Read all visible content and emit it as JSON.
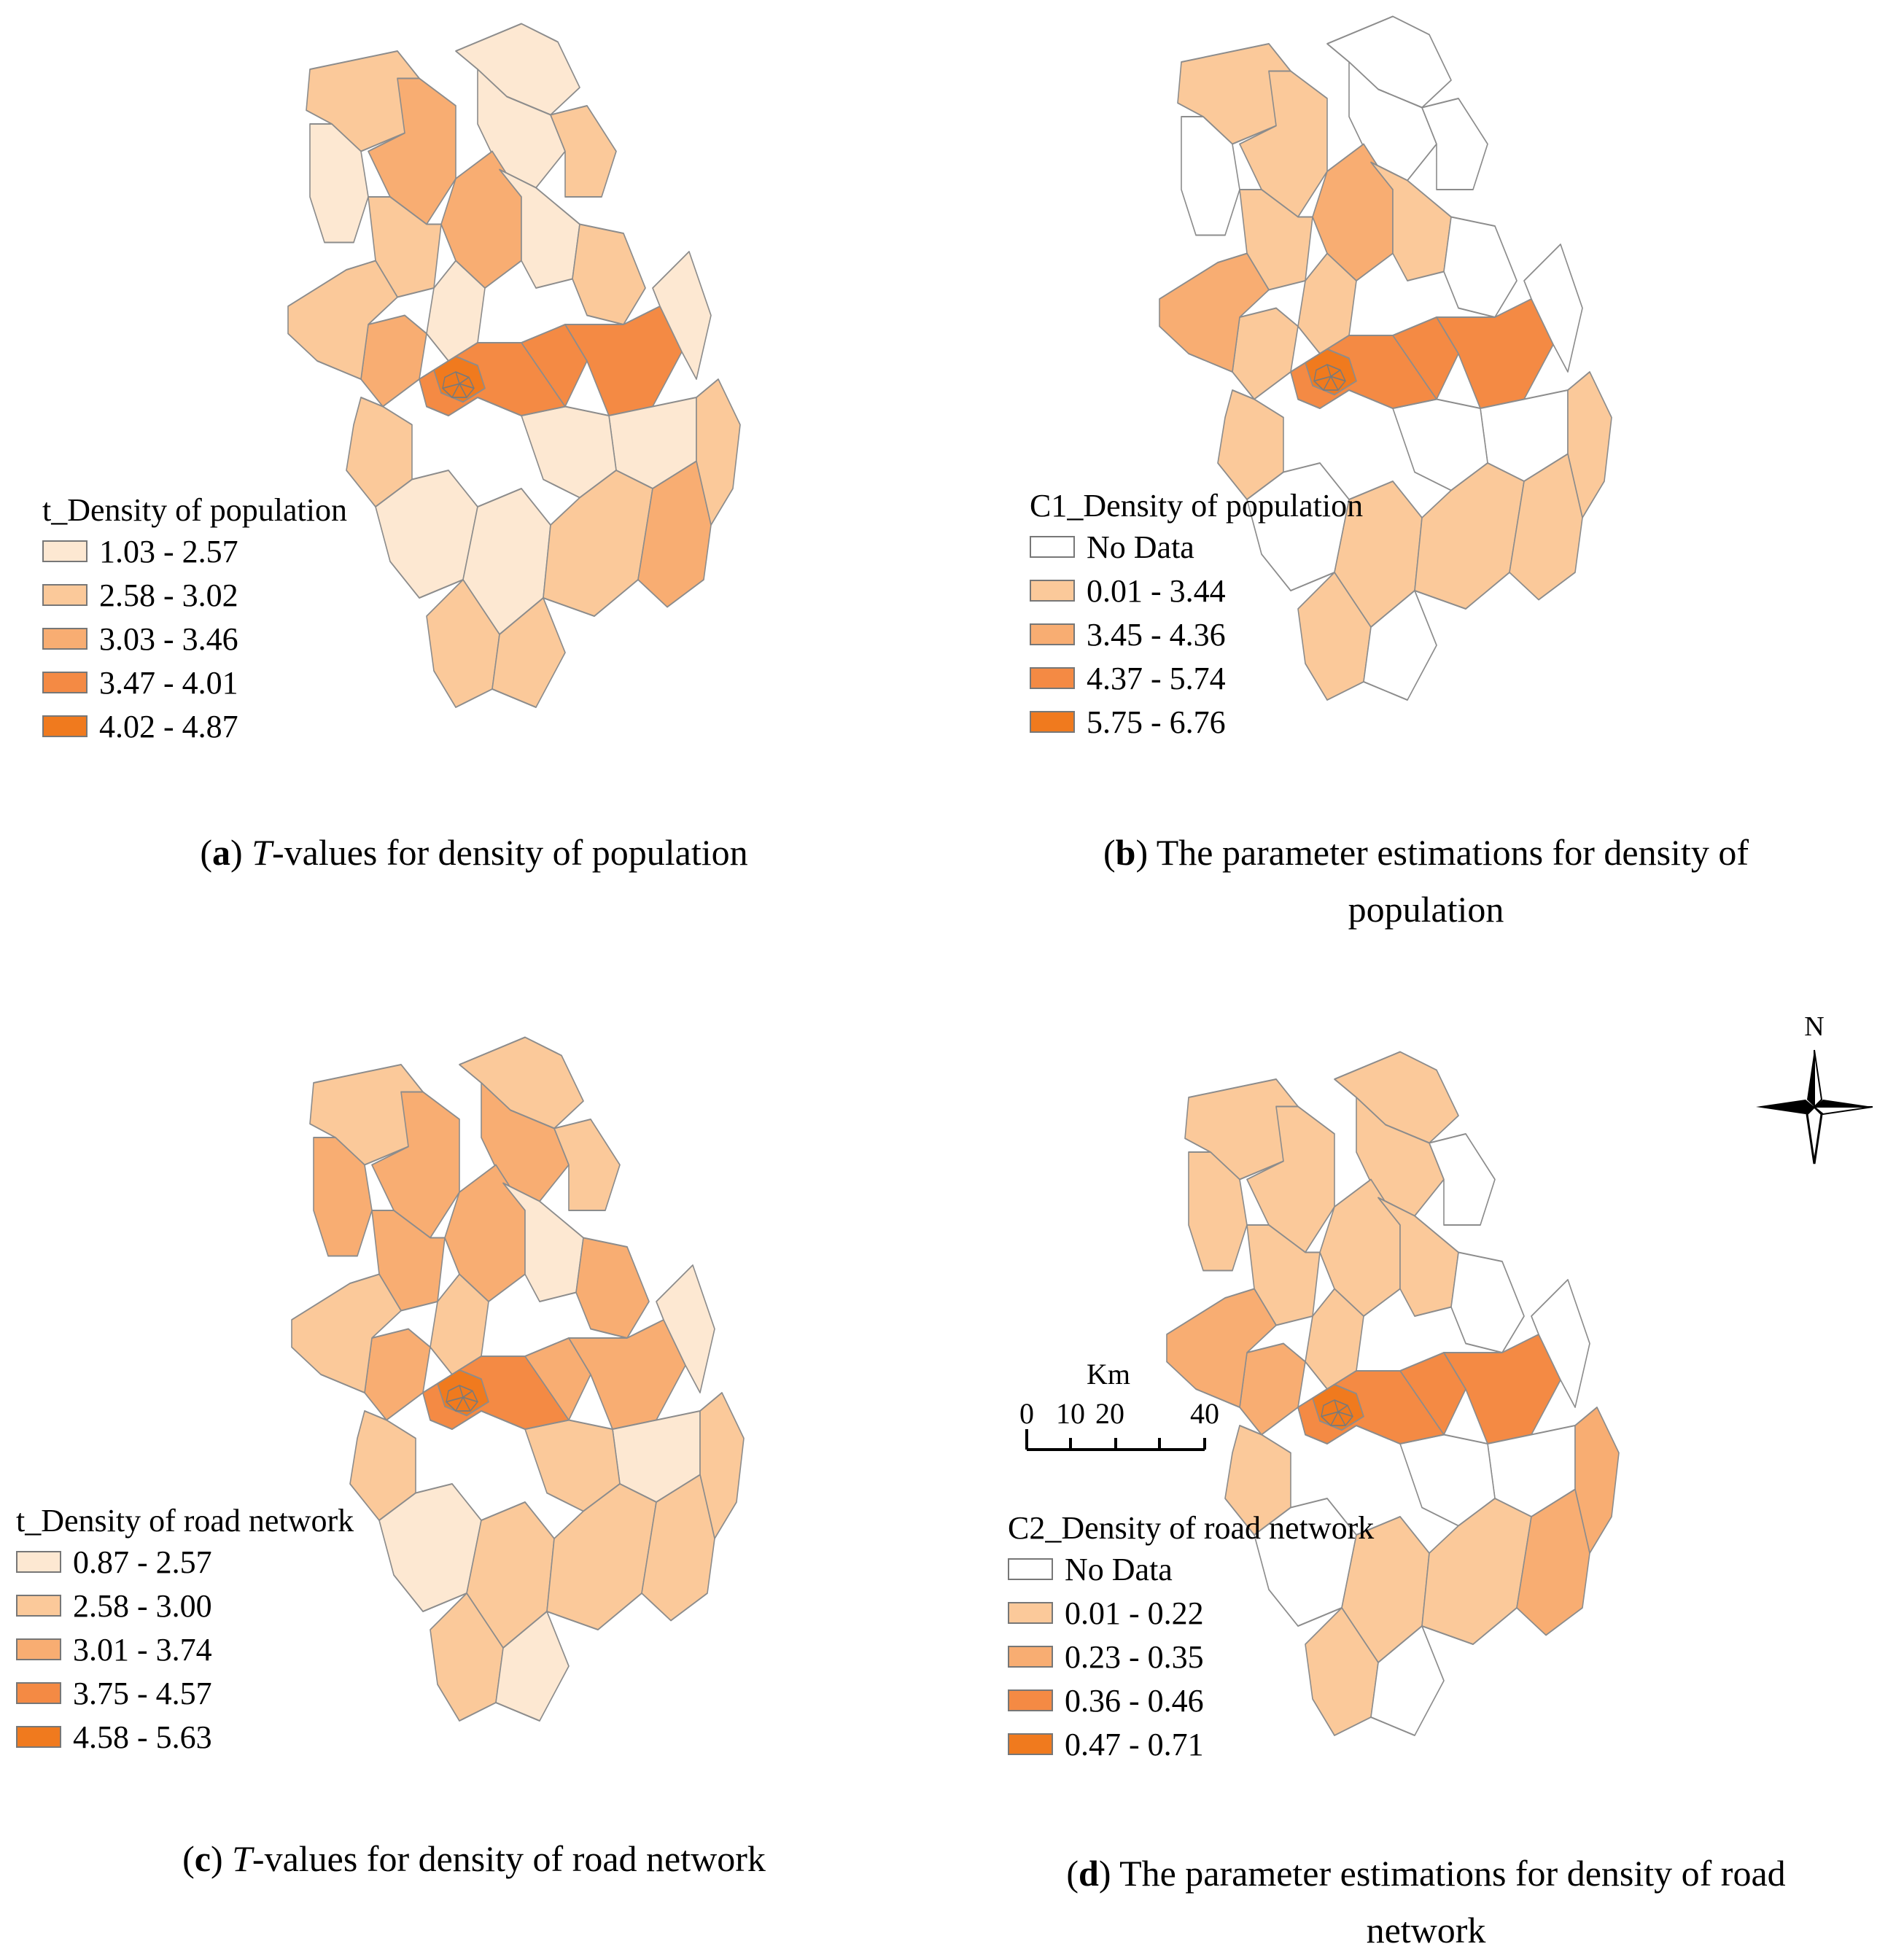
{
  "colors": {
    "no_data": "#ffffff",
    "class1": "#fde8d2",
    "class2": "#fbc99a",
    "class3": "#f8ad72",
    "class4": "#f48a44",
    "class5": "#f07a1e",
    "boundary": "#8c8c8c"
  },
  "panels": [
    {
      "letter": "a",
      "caption_italic": "T",
      "caption_rest": "-values for density of population",
      "caption_line2": "",
      "legend": {
        "title": "t_Density of population",
        "items": [
          {
            "label": "1.03 - 2.57",
            "class": "class1"
          },
          {
            "label": "2.58 - 3.02",
            "class": "class2"
          },
          {
            "label": "3.03 - 3.46",
            "class": "class3"
          },
          {
            "label": "3.47 - 4.01",
            "class": "class4"
          },
          {
            "label": "4.02 - 4.87",
            "class": "class5"
          }
        ]
      }
    },
    {
      "letter": "b",
      "caption_italic": "",
      "caption_rest": "The parameter estimations for density of",
      "caption_line2": "population",
      "legend": {
        "title": "C1_Density of population",
        "items": [
          {
            "label": "No Data",
            "class": "no_data"
          },
          {
            "label": "0.01 - 3.44",
            "class": "class2"
          },
          {
            "label": "3.45 - 4.36",
            "class": "class3"
          },
          {
            "label": "4.37 - 5.74",
            "class": "class4"
          },
          {
            "label": "5.75 - 6.76",
            "class": "class5"
          }
        ]
      }
    },
    {
      "letter": "c",
      "caption_italic": "T",
      "caption_rest": "-values for density of road network",
      "caption_line2": "",
      "legend": {
        "title": "t_Density of road network",
        "items": [
          {
            "label": "0.87 - 2.57",
            "class": "class1"
          },
          {
            "label": "2.58 - 3.00",
            "class": "class2"
          },
          {
            "label": "3.01 - 3.74",
            "class": "class3"
          },
          {
            "label": "3.75 - 4.57",
            "class": "class4"
          },
          {
            "label": "4.58 - 5.63",
            "class": "class5"
          }
        ]
      }
    },
    {
      "letter": "d",
      "caption_italic": "",
      "caption_rest": "The parameter estimations for density of road",
      "caption_line2": "network",
      "legend": {
        "title": "C2_Density of road network",
        "items": [
          {
            "label": "No Data",
            "class": "no_data"
          },
          {
            "label": "0.01 - 0.22",
            "class": "class2"
          },
          {
            "label": "0.23 - 0.35",
            "class": "class3"
          },
          {
            "label": "0.36 - 0.46",
            "class": "class4"
          },
          {
            "label": "0.47 - 0.71",
            "class": "class5"
          }
        ]
      }
    }
  ],
  "north_arrow": {
    "label": "N"
  },
  "scale_bar": {
    "unit": "Km",
    "ticks": [
      "0",
      "10",
      "20",
      "40"
    ]
  },
  "region_classes": {
    "a": [
      "class2",
      "class3",
      "class1",
      "class1",
      "class1",
      "class2",
      "class3",
      "class2",
      "class1",
      "class1",
      "class2",
      "class3",
      "class4",
      "class4",
      "class4",
      "class2",
      "class2",
      "class1",
      "class1",
      "class1",
      "class2",
      "class1",
      "class1",
      "class2",
      "class3",
      "class2",
      "class2",
      "class4",
      "class5"
    ],
    "b": [
      "class2",
      "class2",
      "no_data",
      "no_data",
      "no_data",
      "no_data",
      "class3",
      "class2",
      "class2",
      "class2",
      "no_data",
      "class2",
      "class3",
      "class4",
      "class4",
      "class3",
      "class2",
      "no_data",
      "no_data",
      "no_data",
      "class2",
      "no_data",
      "class2",
      "class2",
      "class2",
      "class2",
      "no_data",
      "class4",
      "class5"
    ],
    "c": [
      "class2",
      "class3",
      "class2",
      "class3",
      "class3",
      "class2",
      "class3",
      "class3",
      "class2",
      "class1",
      "class3",
      "class3",
      "class3",
      "class3",
      "class3",
      "class2",
      "class2",
      "class1",
      "class1",
      "class2",
      "class2",
      "class1",
      "class2",
      "class2",
      "class2",
      "class2",
      "class1",
      "class4",
      "class5"
    ],
    "d": [
      "class2",
      "class2",
      "class2",
      "class2",
      "class2",
      "no_data",
      "class2",
      "class2",
      "class2",
      "class2",
      "no_data",
      "class3",
      "class3",
      "class4",
      "class4",
      "class3",
      "class2",
      "no_data",
      "no_data",
      "no_data",
      "class3",
      "no_data",
      "class2",
      "class2",
      "class3",
      "class2",
      "no_data",
      "class4",
      "class5"
    ]
  }
}
